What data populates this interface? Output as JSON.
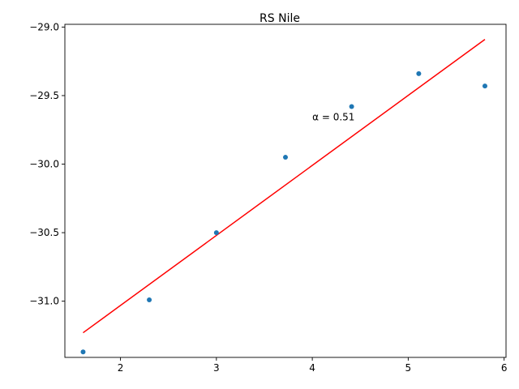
{
  "chart_data": {
    "type": "scatter",
    "title": "RS Nile",
    "xlabel": "",
    "ylabel": "",
    "xlim": [
      1.42,
      6.02
    ],
    "ylim": [
      -31.41,
      -28.98
    ],
    "xticks": [
      2,
      3,
      4,
      5,
      6
    ],
    "yticks": [
      -29.0,
      -29.5,
      -30.0,
      -30.5,
      -31.0
    ],
    "xtick_labels": [
      "2",
      "3",
      "4",
      "5",
      "6"
    ],
    "ytick_labels": [
      "−29.0",
      "−29.5",
      "−30.0",
      "−30.5",
      "−31.0"
    ],
    "grid": false,
    "series": [
      {
        "kind": "points",
        "color": "#1f77b4",
        "x": [
          1.61,
          2.3,
          3.0,
          3.72,
          4.41,
          5.11,
          5.8
        ],
        "y": [
          -31.37,
          -30.99,
          -30.5,
          -29.95,
          -29.58,
          -29.34,
          -29.43
        ]
      },
      {
        "kind": "line",
        "color": "#ff0000",
        "x": [
          1.61,
          5.8
        ],
        "y": [
          -31.23,
          -29.09
        ]
      }
    ],
    "annotations": [
      {
        "text": "α = 0.51",
        "x": 4.0,
        "y": -29.68
      }
    ]
  }
}
